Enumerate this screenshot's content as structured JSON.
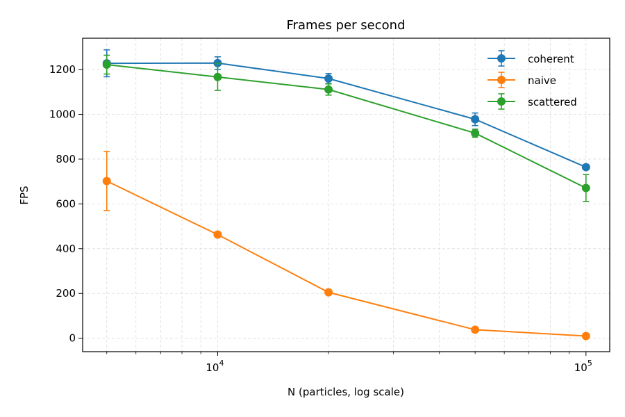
{
  "chart_data": {
    "type": "line",
    "title": "Frames per second",
    "xlabel": "N (particles, log scale)",
    "ylabel": "FPS",
    "xscale": "log",
    "xlim": [
      4300,
      116000
    ],
    "ylim": [
      -60,
      1340
    ],
    "x": [
      5000,
      10000,
      20000,
      50000,
      100000
    ],
    "yticks": [
      0,
      200,
      400,
      600,
      800,
      1000,
      1200
    ],
    "xticks": [
      {
        "value": 10000,
        "base": "10",
        "exp": "4"
      },
      {
        "value": 100000,
        "base": "10",
        "exp": "5"
      }
    ],
    "grid": true,
    "legend_position": "top-right",
    "series": [
      {
        "name": "coherent",
        "color": "#1f77b4",
        "values": [
          1228,
          1229,
          1160,
          978,
          764
        ],
        "errors": [
          60,
          28,
          22,
          28,
          10
        ]
      },
      {
        "name": "naive",
        "color": "#ff7f0e",
        "values": [
          702,
          463,
          205,
          38,
          10
        ],
        "errors": [
          132,
          5,
          5,
          3,
          3
        ]
      },
      {
        "name": "scattered",
        "color": "#2ca02c",
        "values": [
          1222,
          1167,
          1111,
          916,
          671
        ],
        "errors": [
          42,
          60,
          25,
          18,
          60
        ]
      }
    ]
  }
}
